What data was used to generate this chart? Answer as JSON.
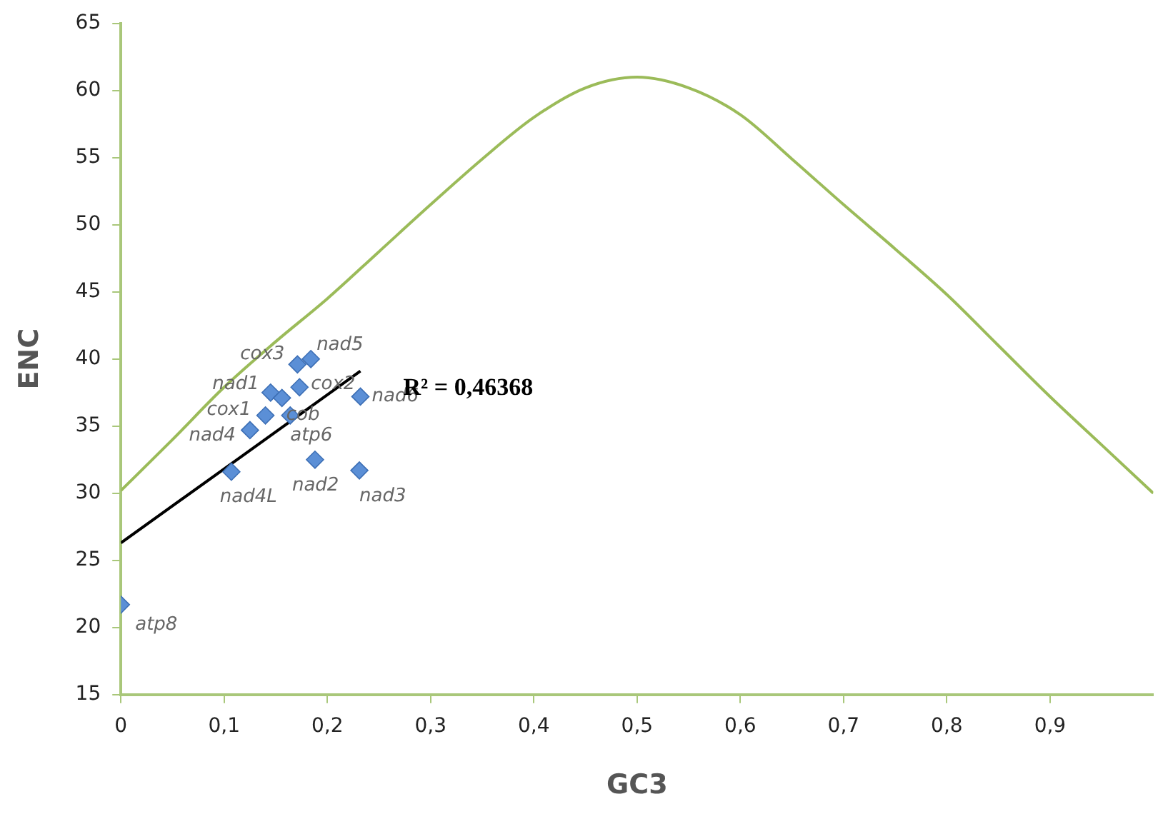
{
  "chart_data": {
    "type": "scatter",
    "xlabel": "GC3",
    "ylabel": "ENC",
    "xlim": [
      0,
      1
    ],
    "ylim": [
      15,
      65
    ],
    "xticks": [
      0,
      {
        "value": 0.1,
        "label": "0,1"
      },
      {
        "value": 0.2,
        "label": "0,2"
      },
      {
        "value": 0.3,
        "label": "0,3"
      },
      {
        "value": 0.4,
        "label": "0,4"
      },
      {
        "value": 0.5,
        "label": "0,5"
      },
      {
        "value": 0.6,
        "label": "0,6"
      },
      {
        "value": 0.7,
        "label": "0,7"
      },
      {
        "value": 0.8,
        "label": "0,8"
      },
      {
        "value": 0.9,
        "label": "0,9"
      }
    ],
    "yticks": [
      15,
      20,
      25,
      30,
      35,
      40,
      45,
      50,
      55,
      60,
      65
    ],
    "grid": false,
    "legend": false,
    "marker": "diamond",
    "series": [
      {
        "type": "scatter",
        "color": "#5b8fd6",
        "x": [
          0,
          0.107,
          0.125,
          0.14,
          0.145,
          0.156,
          0.164,
          0.171,
          0.173,
          0.184,
          0.188,
          0.231,
          0.232
        ],
        "values": [
          21.7,
          31.6,
          34.7,
          35.8,
          37.5,
          37.1,
          35.8,
          39.6,
          37.9,
          40.0,
          32.5,
          31.7,
          37.2
        ]
      },
      {
        "type": "line",
        "color": "#000000",
        "marker": "none",
        "x": [
          0,
          0.232
        ],
        "values": [
          26.3,
          39.1
        ]
      },
      {
        "type": "line",
        "color": "#9bbb59",
        "marker": "none",
        "x": [
          0,
          0.05,
          0.1,
          0.15,
          0.2,
          0.25,
          0.3,
          0.35,
          0.4,
          0.45,
          0.5,
          0.55,
          0.6,
          0.65,
          0.7,
          0.75,
          0.8,
          0.85,
          0.9,
          0.95,
          1
        ],
        "values": [
          30.2,
          34,
          37.9,
          41.3,
          44.5,
          48,
          51.5,
          54.9,
          58,
          60.2,
          61,
          60.2,
          58.2,
          54.9,
          51.5,
          48.2,
          44.8,
          41,
          37.2,
          33.6,
          30
        ]
      }
    ],
    "annotations": [
      {
        "text": "atp8",
        "x": 0,
        "y": 21.7
      },
      {
        "text": "nad4L",
        "x": 0.107,
        "y": 31.6
      },
      {
        "text": "nad4",
        "x": 0.125,
        "y": 34.7
      },
      {
        "text": "cox1",
        "x": 0.14,
        "y": 35.8
      },
      {
        "text": "nad1",
        "x": 0.145,
        "y": 37.5
      },
      {
        "text": "cob",
        "x": 0.156,
        "y": 37.1
      },
      {
        "text": "atp6",
        "x": 0.164,
        "y": 35.8
      },
      {
        "text": "cox3",
        "x": 0.171,
        "y": 39.6
      },
      {
        "text": "cox2",
        "x": 0.173,
        "y": 37.9
      },
      {
        "text": "nad5",
        "x": 0.184,
        "y": 40.0
      },
      {
        "text": "nad2",
        "x": 0.188,
        "y": 32.5
      },
      {
        "text": "nad3",
        "x": 0.231,
        "y": 31.7
      },
      {
        "text": "nad6",
        "x": 0.232,
        "y": 37.2
      },
      {
        "text": "R² = 0,46368",
        "x": 0.232,
        "y": 39.1
      }
    ]
  }
}
